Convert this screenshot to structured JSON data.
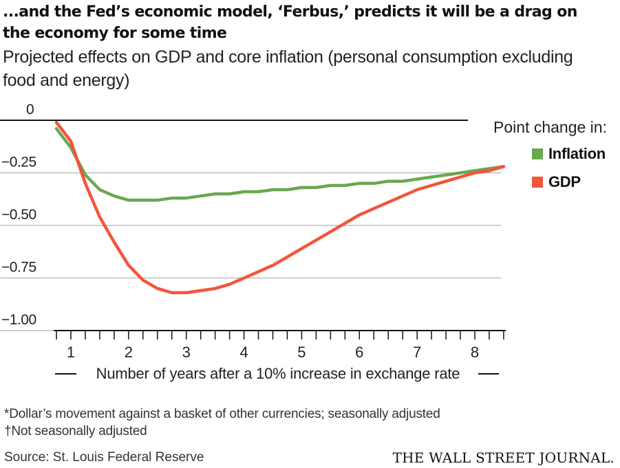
{
  "title": "...and the Fed’s economic model, ‘Ferbus,’ predicts it will be a drag on the economy for some time",
  "subtitle": "Projected effects on GDP and core inflation (personal consumption excluding food and energy)",
  "legend": {
    "title": "Point change in:",
    "items": [
      {
        "label": "Inflation",
        "color": "#6aa84f"
      },
      {
        "label": "GDP",
        "color": "#f4543c"
      }
    ]
  },
  "footnotes": [
    "*Dollar’s movement against a basket of other currencies; seasonally adjusted",
    "†Not seasonally adjusted"
  ],
  "source": "Source: St. Louis Federal Reserve",
  "brand": "THE WALL STREET JOURNAL.",
  "chart_data": {
    "type": "line",
    "xlabel": "Number of years after a 10% increase in exchange rate",
    "ylabel": "",
    "xlim": [
      0.75,
      8.5
    ],
    "ylim": [
      -1.0,
      0
    ],
    "x_ticks": [
      1,
      2,
      3,
      4,
      5,
      6,
      7,
      8
    ],
    "y_ticks": [
      0,
      -0.25,
      -0.5,
      -0.75,
      -1.0
    ],
    "y_tick_labels": [
      "0",
      "−0.25",
      "−0.50",
      "−0.75",
      "−1.00"
    ],
    "grid": true,
    "legend_position": "right",
    "series": [
      {
        "name": "Inflation",
        "color": "#6aa84f",
        "x": [
          0.75,
          1.0,
          1.25,
          1.5,
          1.75,
          2.0,
          2.25,
          2.5,
          2.75,
          3.0,
          3.25,
          3.5,
          3.75,
          4.0,
          4.25,
          4.5,
          4.75,
          5.0,
          5.25,
          5.5,
          5.75,
          6.0,
          6.25,
          6.5,
          6.75,
          7.0,
          7.25,
          7.5,
          7.75,
          8.0,
          8.25,
          8.5
        ],
        "y": [
          -0.04,
          -0.13,
          -0.26,
          -0.33,
          -0.36,
          -0.38,
          -0.38,
          -0.38,
          -0.37,
          -0.37,
          -0.36,
          -0.35,
          -0.35,
          -0.34,
          -0.34,
          -0.33,
          -0.33,
          -0.32,
          -0.32,
          -0.31,
          -0.31,
          -0.3,
          -0.3,
          -0.29,
          -0.29,
          -0.28,
          -0.27,
          -0.26,
          -0.25,
          -0.24,
          -0.23,
          -0.22
        ]
      },
      {
        "name": "GDP",
        "color": "#f4543c",
        "x": [
          0.75,
          1.0,
          1.25,
          1.5,
          1.75,
          2.0,
          2.25,
          2.5,
          2.75,
          3.0,
          3.25,
          3.5,
          3.75,
          4.0,
          4.25,
          4.5,
          4.75,
          5.0,
          5.25,
          5.5,
          5.75,
          6.0,
          6.25,
          6.5,
          6.75,
          7.0,
          7.25,
          7.5,
          7.75,
          8.0,
          8.25,
          8.5
        ],
        "y": [
          -0.01,
          -0.1,
          -0.3,
          -0.46,
          -0.58,
          -0.69,
          -0.76,
          -0.8,
          -0.82,
          -0.82,
          -0.81,
          -0.8,
          -0.78,
          -0.75,
          -0.72,
          -0.69,
          -0.65,
          -0.61,
          -0.57,
          -0.53,
          -0.49,
          -0.45,
          -0.42,
          -0.39,
          -0.36,
          -0.33,
          -0.31,
          -0.29,
          -0.27,
          -0.25,
          -0.24,
          -0.22
        ]
      }
    ]
  }
}
